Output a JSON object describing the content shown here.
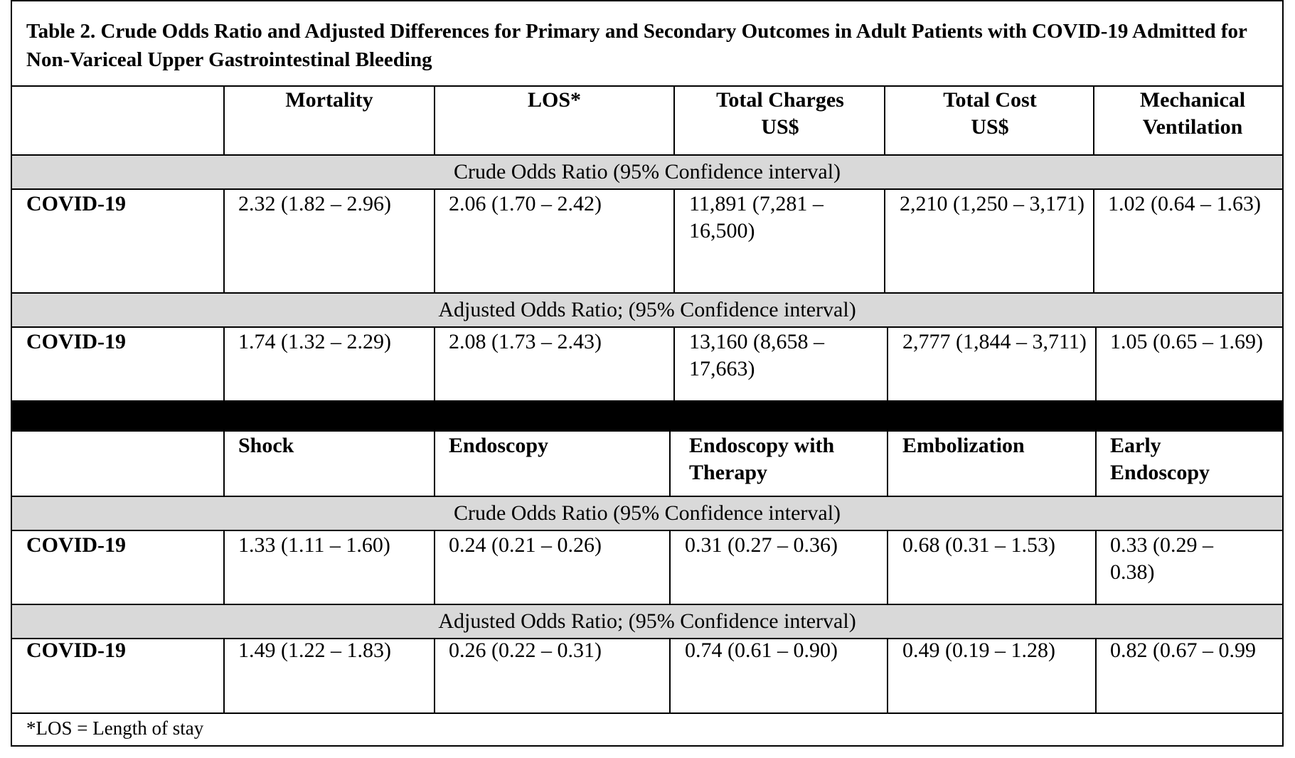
{
  "title": "Table 2.  Crude Odds Ratio and Adjusted Differences for Primary and Secondary Outcomes in Adult Patients with COVID-19 Admitted for Non-Variceal Upper Gastrointestinal Bleeding",
  "section1": {
    "headers": [
      "Mortality",
      "LOS*",
      "Total Charges US$",
      "Total Cost US$",
      "Mechanical Ventilation"
    ],
    "crude_label": "Crude Odds Ratio (95% Confidence interval)",
    "crude_row": {
      "label": "COVID-19",
      "values": [
        "2.32 (1.82 – 2.96)",
        "2.06 (1.70 – 2.42)",
        "11,891 (7,281 – 16,500)",
        "2,210 (1,250 – 3,171)",
        "1.02 (0.64 – 1.63)"
      ]
    },
    "adjusted_label": "Adjusted Odds Ratio; (95% Confidence interval)",
    "adjusted_row": {
      "label": "COVID-19",
      "values": [
        "1.74 (1.32 – 2.29)",
        "2.08 (1.73 – 2.43)",
        "13,160 (8,658 – 17,663)",
        "2,777 (1,844 – 3,711)",
        "1.05 (0.65 – 1.69)"
      ]
    }
  },
  "section2": {
    "headers": [
      "Shock",
      "Endoscopy",
      "Endoscopy with Therapy",
      "Embolization",
      "Early Endoscopy"
    ],
    "crude_label": "Crude Odds Ratio (95% Confidence interval)",
    "crude_row": {
      "label": "COVID-19",
      "values": [
        "1.33 (1.11 – 1.60)",
        "0.24 (0.21 – 0.26)",
        "0.31 (0.27 – 0.36)",
        "0.68 (0.31 – 1.53)",
        "0.33 (0.29 – 0.38)"
      ]
    },
    "adjusted_label": "Adjusted Odds Ratio; (95% Confidence interval)",
    "adjusted_row": {
      "label": "COVID-19",
      "values": [
        "1.49 (1.22 – 1.83)",
        "0.26 (0.22 – 0.31)",
        "0.74 (0.61 – 0.90)",
        "0.49 (0.19 – 1.28)",
        "0.82 (0.67 – 0.99"
      ]
    }
  },
  "footnote": "*LOS = Length of stay"
}
